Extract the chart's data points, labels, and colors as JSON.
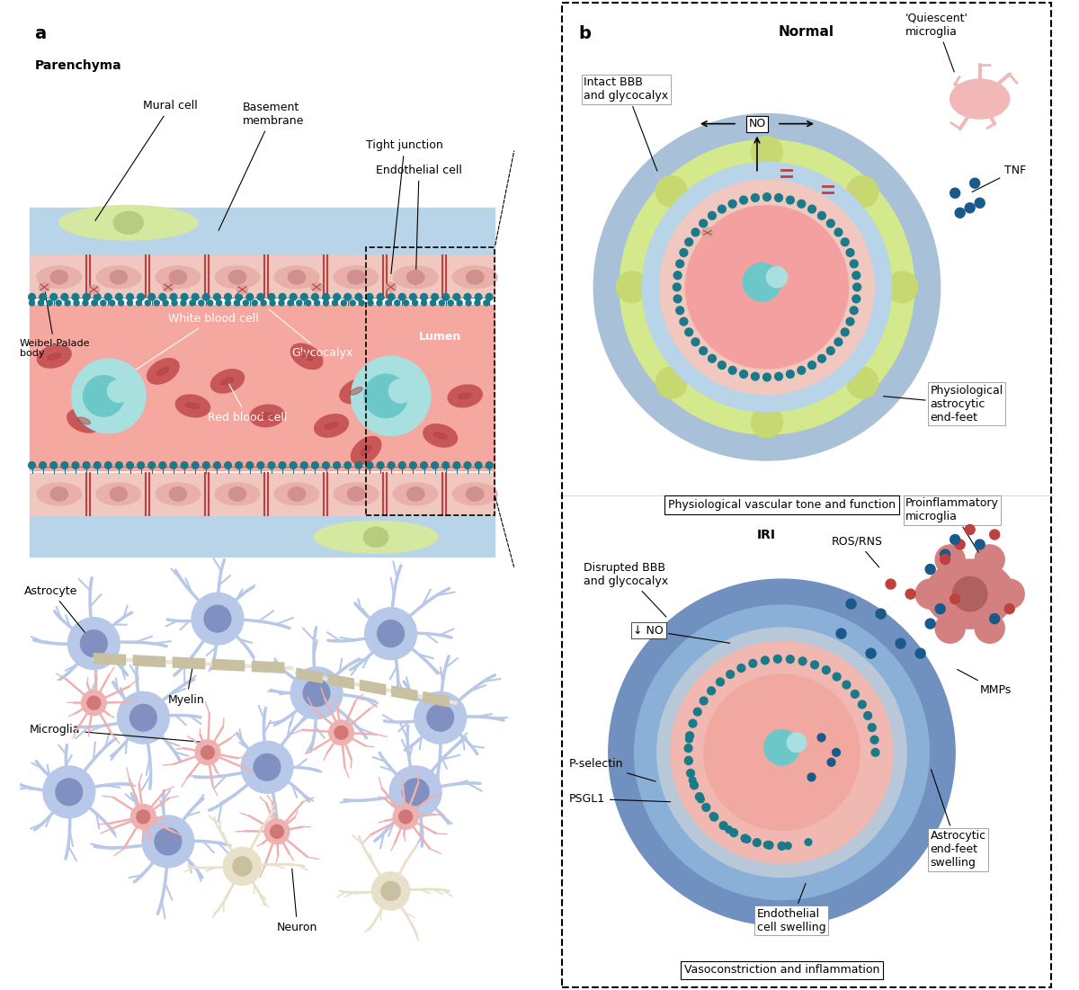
{
  "bg_color": "#ffffff",
  "panel_a_bg": "#ffffff",
  "panel_b_bg": "#ffffff",
  "border_color": "#555555",
  "title_a": "a",
  "title_b": "b",
  "parenchyma_label": "Parenchyma",
  "normal_label": "Normal",
  "iri_label": "IRI",
  "vessel_wall_color": "#e8c4c4",
  "vessel_lumen_color": "#f2a0a0",
  "basement_membrane_color": "#b8d4e8",
  "glycocalyx_color": "#1a7a8a",
  "endothelial_cell_color": "#e8c4c4",
  "mural_cell_color": "#d4e8a0",
  "tight_junction_color": "#c04040",
  "wbc_color": "#a8e0e0",
  "rbc_color": "#c04040",
  "astrocyte_color": "#b8c8e8",
  "microglia_color": "#f0b0b0",
  "neuron_color": "#e8e0c8",
  "myelin_color": "#c8c0a0",
  "astrocyte_endfeet_color_normal": "#d4e88c",
  "astrocyte_endfeet_color_iri": "#6b9fd4",
  "cross_section_outer_color": "#a8c0d8",
  "cross_section_middle_color": "#d4e88c",
  "cross_section_inner_wall": "#e8c4c4",
  "cross_section_lumen": "#f2a0a0",
  "quiescent_microglia_color": "#f2b8b8",
  "proinflammatory_microglia_color": "#d48080",
  "tnf_dot_color": "#1a5a8a",
  "ros_color": "#c04040",
  "mmp_dot_blue": "#1a5a8a",
  "mmp_dot_red": "#c04040",
  "label_fontsize": 9,
  "title_fontsize": 11,
  "section_title_fontsize": 10,
  "caption_fontsize": 9
}
